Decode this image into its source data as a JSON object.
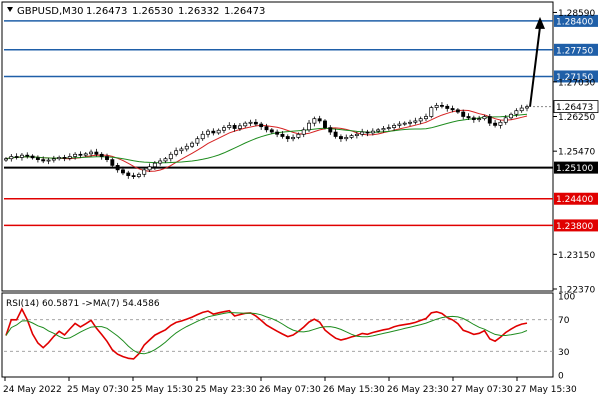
{
  "header": {
    "symbol_label": "GBPUSD,M30",
    "open": "1.26473",
    "high": "1.26530",
    "low": "1.26332",
    "close": "1.26473"
  },
  "rsi_header": {
    "label": "RSI(14) 60.5871 ->MA(7) 54.4586"
  },
  "colors": {
    "candle_up": "#ffffff",
    "candle_down": "#000000",
    "ma_fast": "#d62222",
    "ma_slow": "#1e8c1e",
    "level_blue": "#1f5fa8",
    "level_black": "#000000",
    "level_red": "#e00000",
    "rsi_line": "#e00000",
    "rsi_ma": "#1e8c1e",
    "arrow": "#000000"
  },
  "chart_data": [
    {
      "type": "candlestick",
      "title": "GBPUSD,M30",
      "price_axis": {
        "ylim": [
          1.2237,
          1.2878
        ],
        "ticks": [
          "1.28590",
          "1.27030",
          "1.26250",
          "1.25470",
          "1.23150",
          "1.22370"
        ]
      },
      "levels": [
        {
          "value": 1.284,
          "label": "1.28400",
          "color": "blue"
        },
        {
          "value": 1.2775,
          "label": "1.27750",
          "color": "blue"
        },
        {
          "value": 1.2715,
          "label": "1.27150",
          "color": "blue"
        },
        {
          "value": 1.251,
          "label": "1.25100",
          "color": "black"
        },
        {
          "value": 1.244,
          "label": "1.24400",
          "color": "red"
        },
        {
          "value": 1.238,
          "label": "1.23800",
          "color": "red"
        }
      ],
      "current_price": {
        "value": 1.26473,
        "label": "1.26473"
      },
      "projection_arrow": {
        "from": 1.2647,
        "to": 1.284
      },
      "x_axis": {
        "tick_labels": [
          "24 May 2022",
          "25 May 07:30",
          "25 May 15:30",
          "25 May 23:30",
          "26 May 07:30",
          "26 May 15:30",
          "26 May 23:30",
          "27 May 07:30",
          "27 May 15:30"
        ]
      },
      "close_series": [
        1.253,
        1.2535,
        1.2533,
        1.2538,
        1.2536,
        1.2532,
        1.2528,
        1.2525,
        1.2527,
        1.253,
        1.2533,
        1.2531,
        1.2535,
        1.254,
        1.2538,
        1.2541,
        1.2545,
        1.254,
        1.2535,
        1.2528,
        1.2515,
        1.2505,
        1.2498,
        1.2492,
        1.249,
        1.2495,
        1.2505,
        1.2512,
        1.252,
        1.2525,
        1.253,
        1.254,
        1.2548,
        1.2552,
        1.2558,
        1.2565,
        1.2575,
        1.2585,
        1.2592,
        1.2588,
        1.2594,
        1.26,
        1.2605,
        1.2598,
        1.2604,
        1.261,
        1.2612,
        1.2608,
        1.2602,
        1.2595,
        1.259,
        1.2585,
        1.258,
        1.2575,
        1.2578,
        1.2585,
        1.2595,
        1.261,
        1.262,
        1.2615,
        1.26,
        1.259,
        1.258,
        1.2575,
        1.2578,
        1.2582,
        1.2585,
        1.259,
        1.2588,
        1.2592,
        1.2595,
        1.2598,
        1.26,
        1.2605,
        1.2608,
        1.261,
        1.2612,
        1.2615,
        1.262,
        1.2625,
        1.2645,
        1.265,
        1.2648,
        1.2643,
        1.264,
        1.2635,
        1.2625,
        1.2622,
        1.2618,
        1.262,
        1.2625,
        1.261,
        1.2605,
        1.2612,
        1.2622,
        1.263,
        1.2638,
        1.2644,
        1.2647
      ]
    },
    {
      "type": "line",
      "title": "RSI(14) 60.5871 ->MA(7) 54.4586",
      "ylim": [
        0,
        100
      ],
      "y_ticks": [
        100,
        70,
        30,
        0
      ],
      "series": [
        {
          "name": "RSI(14)",
          "last_value": 60.5871
        },
        {
          "name": "MA(7)",
          "last_value": 54.4586
        }
      ]
    }
  ]
}
